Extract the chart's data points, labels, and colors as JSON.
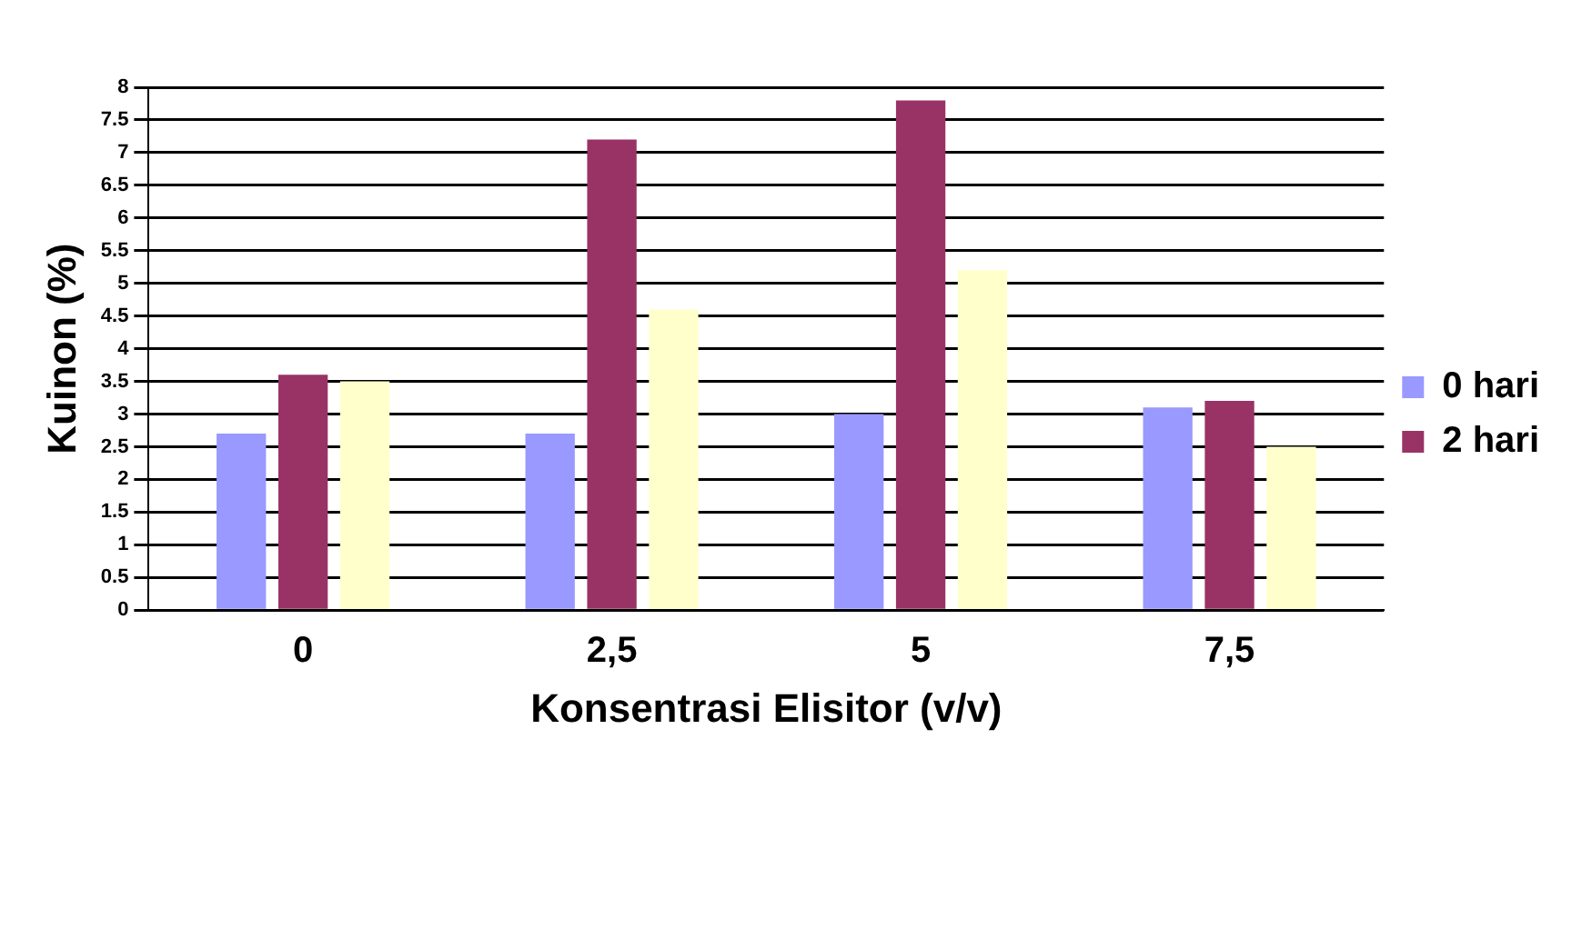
{
  "chart_data": {
    "type": "bar",
    "xlabel": "Konsentrasi Elisitor (v/v)",
    "ylabel": "Kuinon (%)",
    "categories": [
      "0",
      "2,5",
      "5",
      "7,5"
    ],
    "series": [
      {
        "name": "0 hari",
        "color": "#9999ff",
        "values": [
          2.7,
          2.7,
          3.0,
          3.1
        ]
      },
      {
        "name": "2 hari",
        "color": "#993366",
        "values": [
          3.6,
          7.2,
          7.8,
          3.2
        ]
      },
      {
        "color": "#ffffcc",
        "values": [
          3.5,
          4.6,
          5.2,
          2.5
        ]
      }
    ],
    "ylim": [
      0,
      8
    ],
    "yticks": [
      0,
      0.5,
      1,
      1.5,
      2,
      2.5,
      3,
      3.5,
      4,
      4.5,
      5,
      5.5,
      6,
      6.5,
      7,
      7.5,
      8
    ],
    "grid": "y",
    "legend": "right"
  }
}
